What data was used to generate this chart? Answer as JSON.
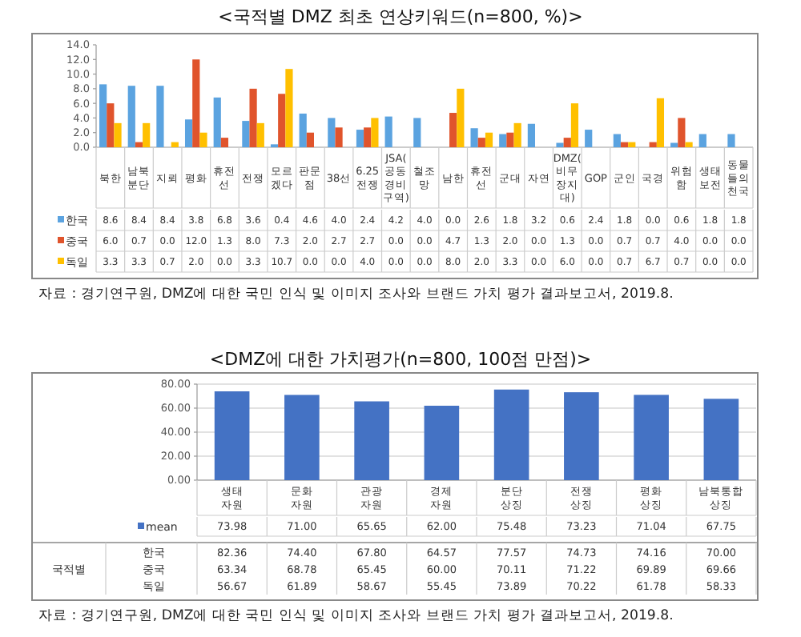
{
  "chart_data": [
    {
      "type": "bar",
      "title": "<국적별 DMZ 최초 연상키워드(n=800, %)>",
      "categories": [
        "북한",
        "남북분단",
        "지뢰",
        "평화",
        "휴전선",
        "전쟁",
        "모르겠다",
        "판문점",
        "38선",
        "6.25전쟁",
        "JSA(공동경비구역)",
        "철조망",
        "남한",
        "휴전선",
        "군대",
        "자연",
        "DMZ(비무장지대)",
        "GOP",
        "군인",
        "국경",
        "위험함",
        "생태보전",
        "동물들의 천국"
      ],
      "series": [
        {
          "name": "한국",
          "color": "#5ba3e0",
          "values": [
            8.6,
            8.4,
            8.4,
            3.8,
            6.8,
            3.6,
            0.4,
            4.6,
            4.0,
            2.4,
            4.2,
            4.0,
            0.0,
            2.6,
            1.8,
            3.2,
            0.6,
            2.4,
            1.8,
            0.0,
            0.6,
            1.8,
            1.8
          ],
          "value_labels": [
            "8.6",
            "8.4",
            "8.4",
            "3.8",
            "6.8",
            "3.6",
            "0.4",
            "4.6",
            "4.0",
            "2.4",
            "4.2",
            "4.0",
            "0.0",
            "2.6",
            "1.8",
            "3.2",
            "0.6",
            "2.4",
            "1.8",
            "0.0",
            "0.6",
            "1.8",
            "1.8"
          ]
        },
        {
          "name": "중국",
          "color": "#e0542c",
          "values": [
            6.0,
            0.7,
            0.0,
            12.0,
            1.3,
            8.0,
            7.3,
            2.0,
            2.7,
            2.7,
            0.0,
            0.0,
            4.7,
            1.3,
            2.0,
            0.0,
            1.3,
            0.0,
            0.7,
            0.7,
            4.0,
            0.0,
            0.0
          ],
          "value_labels": [
            "6.0",
            "0.7",
            "0.0",
            "12.0",
            "1.3",
            "8.0",
            "7.3",
            "2.0",
            "2.7",
            "2.7",
            "0.0",
            "0.0",
            "4.7",
            "1.3",
            "2.0",
            "0.0",
            "1.3",
            "0.0",
            "0.7",
            "0.7",
            "4.0",
            "0.0",
            "0.0"
          ]
        },
        {
          "name": "독일",
          "color": "#ffc000",
          "values": [
            3.3,
            3.3,
            0.7,
            2.0,
            0.0,
            3.3,
            10.7,
            0.0,
            0.0,
            4.0,
            0.0,
            0.0,
            8.0,
            2.0,
            3.3,
            0.0,
            6.0,
            0.0,
            0.7,
            6.7,
            0.7,
            0.0,
            0.0
          ],
          "value_labels": [
            "3.3",
            "3.3",
            "0.7",
            "2.0",
            "0.0",
            "3.3",
            "10.7",
            "0.0",
            "0.0",
            "4.0",
            "0.0",
            "0.0",
            "8.0",
            "2.0",
            "3.3",
            "0.0",
            "6.0",
            "0.0",
            "0.7",
            "6.7",
            "0.7",
            "0.0",
            "0.0"
          ]
        }
      ],
      "ylim": [
        0,
        14
      ],
      "yticks": [
        {
          "value": 0,
          "label": "0.0"
        },
        {
          "value": 2,
          "label": "2.0"
        },
        {
          "value": 4,
          "label": "4.0"
        },
        {
          "value": 6,
          "label": "6.0"
        },
        {
          "value": 8,
          "label": "8.0"
        },
        {
          "value": 10,
          "label": "10.0"
        },
        {
          "value": 12,
          "label": "12.0"
        },
        {
          "value": 14,
          "label": "14.0"
        }
      ],
      "legend": "bottom",
      "annotations": [
        "자료 : 경기연구원, DMZ에 대한 국민 인식 및 이미지 조사와 브랜드 가치 평가 결과보고서, 2019.8."
      ]
    },
    {
      "type": "bar",
      "title": "<DMZ에 대한 가치평가(n=800, 100점 만점)>",
      "categories": [
        "생태 자원",
        "문화 자원",
        "관광 자원",
        "경제 자원",
        "분단 상징",
        "전쟁 상징",
        "평화 상징",
        "남북통합 상징"
      ],
      "series": [
        {
          "name": "mean",
          "color": "#4472c4",
          "values": [
            73.98,
            71.0,
            65.65,
            62.0,
            75.48,
            73.23,
            71.04,
            67.75
          ],
          "value_labels": [
            "73.98",
            "71.00",
            "65.65",
            "62.00",
            "75.48",
            "73.23",
            "71.04",
            "67.75"
          ]
        }
      ],
      "ylim": [
        0,
        80
      ],
      "yticks": [
        {
          "value": 0,
          "label": "0.00"
        },
        {
          "value": 20,
          "label": "20.00"
        },
        {
          "value": 40,
          "label": "40.00"
        },
        {
          "value": 60,
          "label": "60.00"
        },
        {
          "value": 80,
          "label": "80.00"
        }
      ],
      "grid": "y",
      "legend": "bottom",
      "annotations": [
        "자료 : 경기연구원, DMZ에 대한 국민 인식 및 이미지 조사와 브랜드 가치 평가 결과보고서, 2019.8."
      ]
    },
    {
      "type": "other",
      "annotations": [
        "국적별",
        "한국",
        "82.36",
        "74.40",
        "67.80",
        "64.57",
        "77.57",
        "74.73",
        "74.16",
        "70.00",
        "중국",
        "63.34",
        "68.78",
        "65.45",
        "60.00",
        "70.11",
        "71.22",
        "69.89",
        "69.66",
        "독일",
        "56.67",
        "61.89",
        "58.67",
        "55.45",
        "73.89",
        "70.22",
        "61.78",
        "58.33"
      ]
    }
  ]
}
